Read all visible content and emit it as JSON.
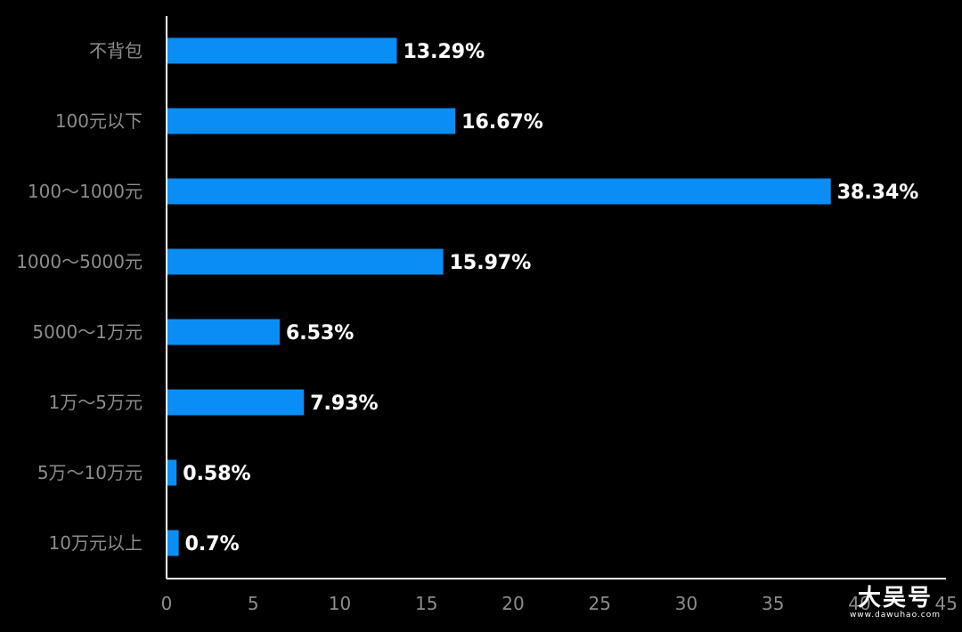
{
  "chart_data": {
    "type": "bar",
    "orientation": "horizontal",
    "categories": [
      "不背包",
      "100元以下",
      "100～1000元",
      "1000～5000元",
      "5000～1万元",
      "1万～5万元",
      "5万～10万元",
      "10万元以上"
    ],
    "values": [
      13.29,
      16.67,
      38.34,
      15.97,
      6.53,
      7.93,
      0.58,
      0.7
    ],
    "data_labels": [
      "13.29%",
      "16.67%",
      "38.34%",
      "15.97%",
      "6.53%",
      "7.93%",
      "0.58%",
      "0.7%"
    ],
    "xlim": [
      0,
      45
    ],
    "xticks": [
      "0",
      "5",
      "10",
      "15",
      "20",
      "25",
      "30",
      "35",
      "40",
      "45"
    ],
    "title": "",
    "xlabel": "",
    "ylabel": "",
    "grid": false,
    "bar_color": "#0a8ef5",
    "background": "#000000"
  },
  "watermark": {
    "main": "大吴号",
    "sub": "www.dawuhao.com"
  }
}
